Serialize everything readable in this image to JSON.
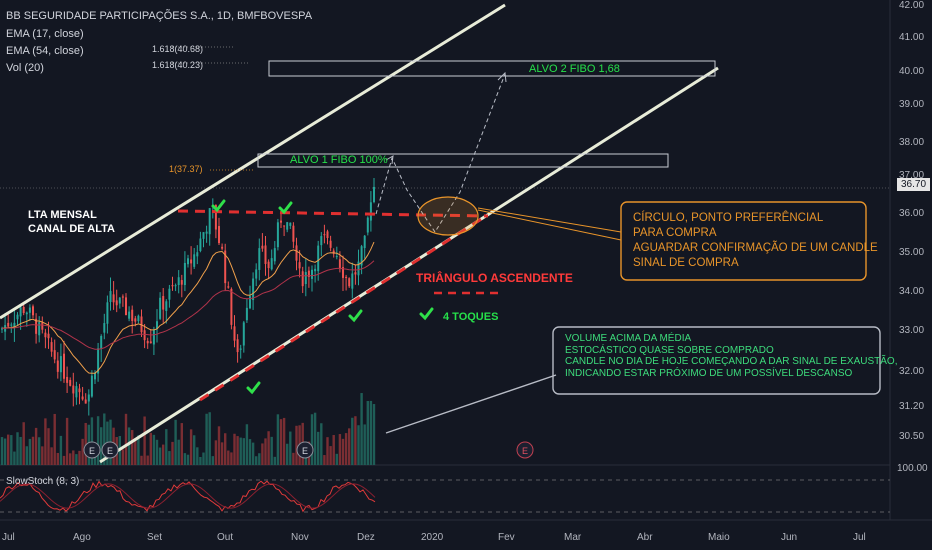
{
  "header": {
    "title": "BB SEGURIDADE PARTICIPAÇÕES S.A., 1D, BMFBOVESPA",
    "indicators": [
      "EMA (17, close)",
      "EMA (54, close)",
      "Vol (20)"
    ]
  },
  "fibo_labels": [
    "1.618(40.68)",
    "1.618(40.23)",
    "1(37.37)"
  ],
  "oscillator_label": "SlowStoch (8, 3)",
  "price_axis": {
    "ticks": [
      "42.00",
      "41.00",
      "40.00",
      "39.00",
      "38.00",
      "37.00",
      "36.00",
      "35.00",
      "34.00",
      "33.00",
      "32.00",
      "31.20",
      "30.50"
    ],
    "current_price": "36.70",
    "osc_tick": "100.00"
  },
  "date_axis": [
    "Jul",
    "Ago",
    "Set",
    "Out",
    "Nov",
    "Dez",
    "2020",
    "Fev",
    "Mar",
    "Abr",
    "Maio",
    "Jun",
    "Jul"
  ],
  "annotations": {
    "canal": [
      "LTA MENSAL",
      "CANAL DE ALTA"
    ],
    "alvo2": "ALVO 2 FIBO 1,68",
    "alvo1": "ALVO 1 FIBO 100%",
    "triangulo": "TRIÂNGULO ASCENDENTE",
    "toques": "4 TOQUES",
    "circulo": [
      "CÍRCULO, PONTO PREFERÊNCIAL",
      "PARA COMPRA",
      "AGUARDAR CONFIRMAÇÃO DE UM CANDLE",
      "SINAL DE COMPRA"
    ],
    "volume": [
      "VOLUME ACIMA DA MÉDIA",
      "ESTOCÁSTICO  QUASE SOBRE COMPRADO",
      "CANDLE NO DIA DE HOJE COMEÇANDO A DAR SINAL DE EXAUSTÃO,",
      " INDICANDO ESTAR PRÓXIMO DE UM POSSÍVEL DESCANSO"
    ],
    "earnings": "E"
  },
  "colors": {
    "background": "#131722",
    "up": "#26a69a",
    "down": "#ef5350",
    "ema17": "#f0a04b",
    "ema54": "#b0334a",
    "channel": "#e8ecd8",
    "target_text": "#26e04a",
    "triangle_text": "#ff3a3a",
    "orange": "#e8942a"
  },
  "chart_data": {
    "type": "candlestick",
    "y_range": [
      30.3,
      42.1
    ],
    "current_price": 36.7,
    "ema_periods": [
      17,
      54
    ],
    "stochastic": {
      "k": 8,
      "d": 3,
      "bands": [
        20,
        80
      ]
    },
    "targets": [
      {
        "name": "ALVO 1 FIBO 100%",
        "fib_ratio": 1,
        "price": 37.37
      },
      {
        "name": "ALVO 2 FIBO 1,68",
        "fib_ratio": 1.618,
        "price": 40.68
      },
      {
        "fib_ratio": 1.618,
        "price": 40.23
      }
    ],
    "resistance": 36.05,
    "approx_price_path": [
      {
        "date": "Jul",
        "close": 33.0
      },
      {
        "date": "Ago",
        "close": 31.6
      },
      {
        "date": "Set",
        "close": 34.3
      },
      {
        "date": "Set-end",
        "close": 36.0
      },
      {
        "date": "Out",
        "close": 32.5
      },
      {
        "date": "Out-end",
        "close": 35.9
      },
      {
        "date": "Nov",
        "close": 34.1
      },
      {
        "date": "Nov-end",
        "close": 34.2
      },
      {
        "date": "Dez",
        "close": 36.7
      }
    ]
  }
}
